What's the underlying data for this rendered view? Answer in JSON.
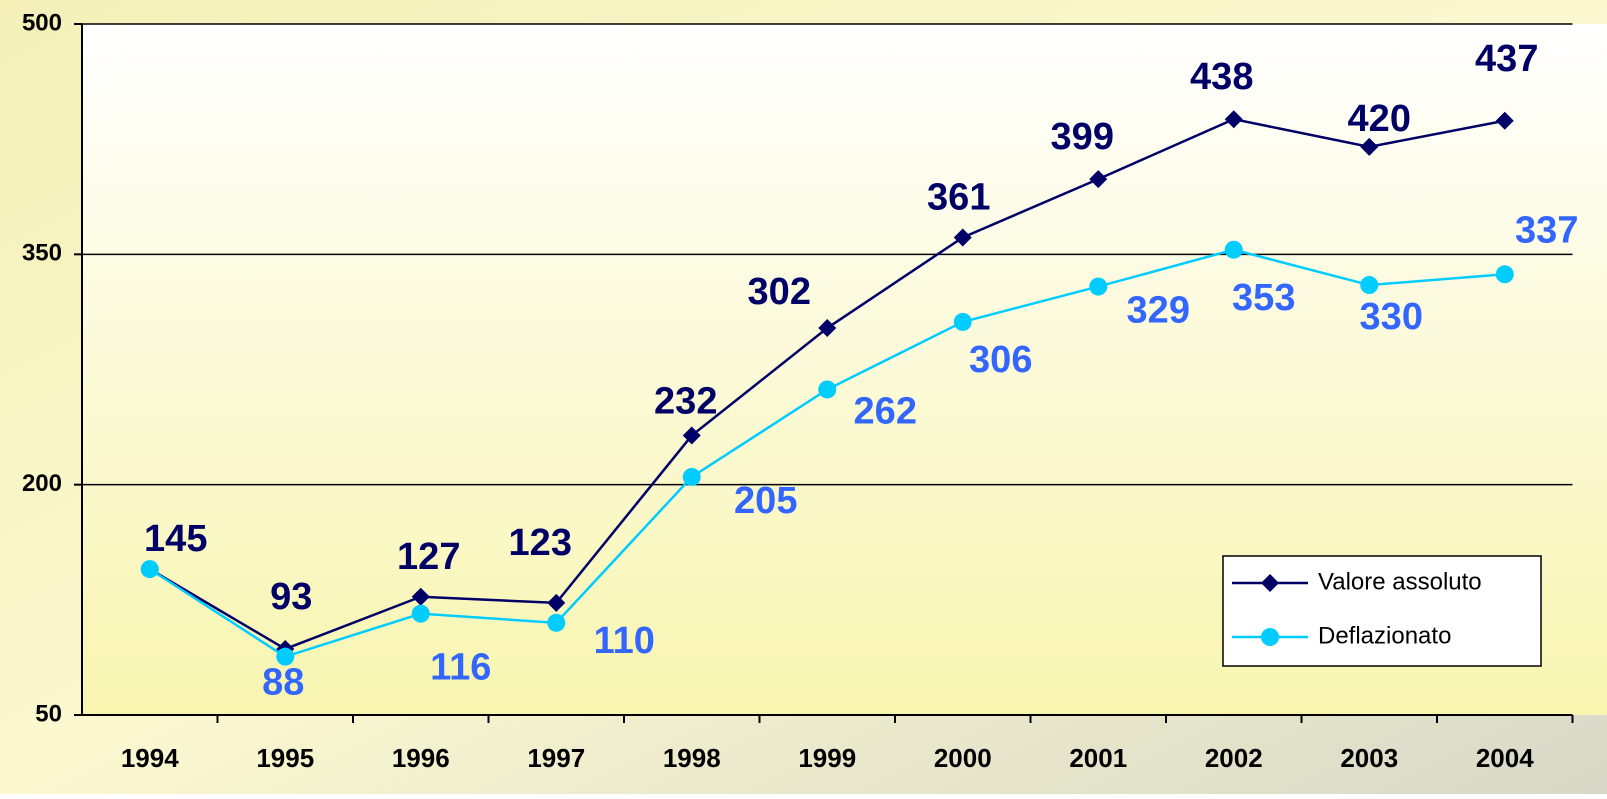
{
  "chart_data": {
    "type": "line",
    "categories": [
      "1994",
      "1995",
      "1996",
      "1997",
      "1998",
      "1999",
      "2000",
      "2001",
      "2002",
      "2003",
      "2004"
    ],
    "series": [
      {
        "name": "Valore assoluto",
        "color": "#000066",
        "marker": "diamond",
        "values": [
          145,
          93,
          127,
          123,
          232,
          302,
          361,
          399,
          438,
          420,
          437
        ]
      },
      {
        "name": "Deflazionato",
        "color": "#00ccff",
        "label_color": "#3366ff",
        "marker": "circle",
        "values": [
          145,
          88,
          116,
          110,
          205,
          262,
          306,
          329,
          353,
          330,
          337
        ],
        "value_labels": [
          null,
          "88",
          "116",
          "110",
          "205",
          "262",
          "306",
          "329",
          "353",
          "330",
          "337"
        ]
      }
    ],
    "ylim": [
      50,
      500
    ],
    "yticks": [
      50,
      200,
      350,
      500
    ],
    "grid": true,
    "legend": "lower right"
  }
}
